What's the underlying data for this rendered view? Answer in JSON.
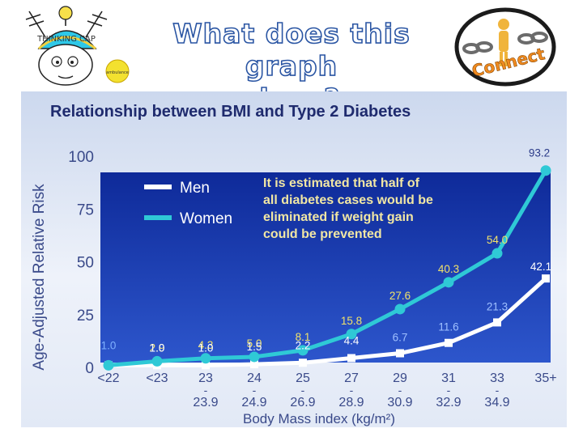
{
  "slide": {
    "heading_line1": "What does this graph",
    "heading_line2": "show?",
    "logo_left_text": "THINKING CAP",
    "logo_left_badge": "ambulance",
    "logo_right_text": "Connect"
  },
  "colors": {
    "heading_outline": "#2a55a3",
    "plot_bg_top": "#0e2a99",
    "plot_bg_bottom": "#2d56cc",
    "men": "#ffffff",
    "women": "#2fc9d6",
    "title": "#1f2b6e"
  },
  "chart_data": {
    "type": "line",
    "title": "Relationship between BMI and Type 2 Diabetes",
    "xlabel": "Body Mass index (kg/m²)",
    "ylabel": "Age-Adjusted Relative Risk",
    "ylim": [
      0,
      100
    ],
    "yticks": [
      0,
      25,
      50,
      75,
      100
    ],
    "grid": false,
    "legend_position": "top-left",
    "categories": [
      {
        "top": "<22",
        "bottom": ""
      },
      {
        "top": "<23",
        "bottom": ""
      },
      {
        "top": "23",
        "bottom": "23.9"
      },
      {
        "top": "24",
        "bottom": "24.9"
      },
      {
        "top": "25",
        "bottom": "26.9"
      },
      {
        "top": "27",
        "bottom": "28.9"
      },
      {
        "top": "29",
        "bottom": "30.9"
      },
      {
        "top": "31",
        "bottom": "32.9"
      },
      {
        "top": "33",
        "bottom": "34.9"
      },
      {
        "top": "35+",
        "bottom": ""
      }
    ],
    "dash": "-",
    "series": [
      {
        "name": "Men",
        "values": [
          1.0,
          1.0,
          1.0,
          1.5,
          2.2,
          4.4,
          6.7,
          11.6,
          21.3,
          42.1
        ],
        "labels": [
          "",
          "1.0",
          "1.0",
          "1.5",
          "2.2",
          "4.4",
          "6.7",
          "11.6",
          "21.3",
          "42.1"
        ]
      },
      {
        "name": "Women",
        "values": [
          1.0,
          2.9,
          4.3,
          5.0,
          8.1,
          15.8,
          27.6,
          40.3,
          54.0,
          93.2
        ],
        "labels": [
          "1.0",
          "2.9",
          "4.3",
          "5.0",
          "8.1",
          "15.8",
          "27.6",
          "40.3",
          "54.0",
          "93.2"
        ]
      }
    ],
    "annotation": [
      "It is estimated that half of",
      "all diabetes cases would be",
      "eliminated if weight gain",
      "could be prevented"
    ]
  }
}
